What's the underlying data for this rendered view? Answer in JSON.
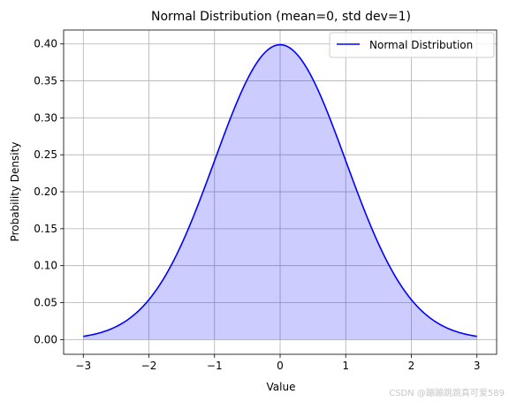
{
  "chart_data": {
    "type": "area",
    "title": "Normal Distribution (mean=0, std dev=1)",
    "xlabel": "Value",
    "ylabel": "Probability Density",
    "xlim": [
      -3.3,
      3.3
    ],
    "ylim": [
      -0.0199,
      0.4188
    ],
    "xticks": [
      -3,
      -2,
      -1,
      0,
      1,
      2,
      3
    ],
    "xtick_labels": [
      "−3",
      "−2",
      "−1",
      "0",
      "1",
      "2",
      "3"
    ],
    "yticks": [
      0.0,
      0.05,
      0.1,
      0.15,
      0.2,
      0.25,
      0.3,
      0.35,
      0.4
    ],
    "ytick_labels": [
      "0.00",
      "0.05",
      "0.10",
      "0.15",
      "0.20",
      "0.25",
      "0.30",
      "0.35",
      "0.40"
    ],
    "grid": true,
    "legend_position": "top-right",
    "series": [
      {
        "name": "Normal Distribution",
        "mean": 0,
        "std": 1,
        "x_range": [
          -3,
          3
        ],
        "line_color": "#0000ff",
        "fill_color": "#0000ff",
        "fill_alpha": 0.2
      }
    ]
  },
  "watermark": "CSDN @蹦蹦跳跳真可爱589"
}
